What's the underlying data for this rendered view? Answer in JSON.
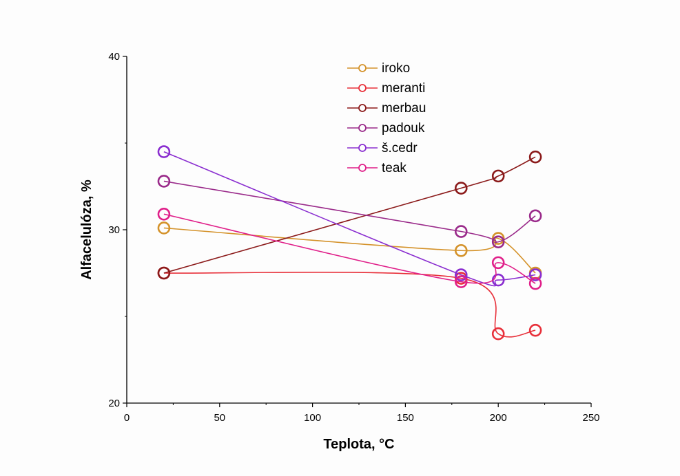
{
  "chart_data": {
    "type": "scatter",
    "xlabel": "Teplota, °C",
    "ylabel": "Alfacelulóza, %",
    "xlim": [
      0,
      250
    ],
    "ylim": [
      20,
      40
    ],
    "x_ticks": [
      0,
      50,
      100,
      150,
      200,
      250
    ],
    "y_ticks": [
      20,
      30,
      40
    ],
    "grid": false,
    "legend_position": "top-center",
    "x": [
      20,
      180,
      200,
      220
    ],
    "series": [
      {
        "name": "iroko",
        "color": "#d4922a",
        "values": [
          30.1,
          28.8,
          29.5,
          27.5
        ]
      },
      {
        "name": "meranti",
        "color": "#e8303a",
        "values": [
          27.5,
          27.2,
          24.0,
          24.2
        ]
      },
      {
        "name": "merbau",
        "color": "#8b1a1a",
        "values": [
          27.5,
          32.4,
          33.1,
          34.2
        ]
      },
      {
        "name": "padouk",
        "color": "#9a2a8a",
        "values": [
          32.8,
          29.9,
          29.3,
          30.8
        ]
      },
      {
        "name": "š.cedr",
        "color": "#8a2ed0",
        "values": [
          34.5,
          27.4,
          27.1,
          27.4
        ]
      },
      {
        "name": "teak",
        "color": "#e0208a",
        "values": [
          30.9,
          27.0,
          28.1,
          26.9
        ]
      }
    ]
  }
}
